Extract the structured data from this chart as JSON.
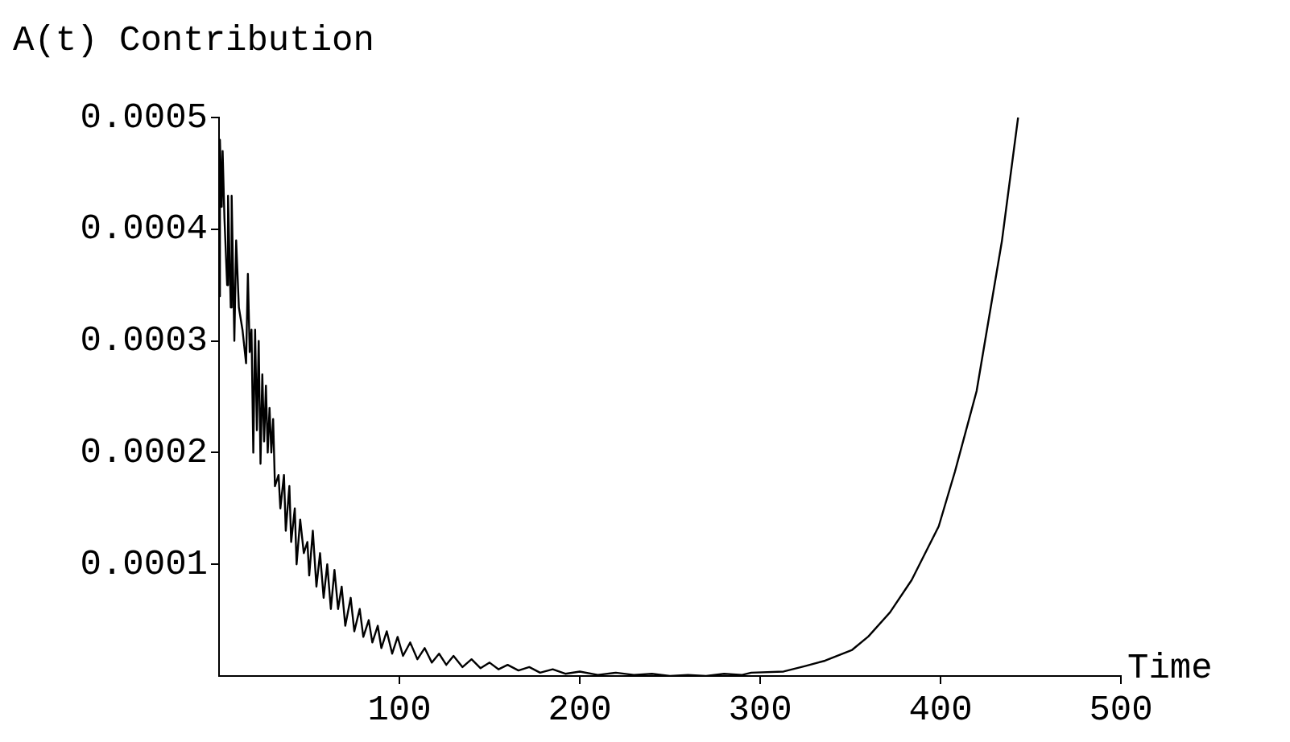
{
  "chart_data": {
    "type": "line",
    "ylabel": "A(t) Contribution",
    "xlabel": "Time",
    "xlim": [
      0,
      500
    ],
    "xticks": [
      100,
      200,
      300,
      400,
      500
    ],
    "ylim": [
      0,
      0.0005
    ],
    "yticks": [
      0.0001,
      0.0002,
      0.0003,
      0.0004,
      0.0005
    ],
    "grid": false,
    "legend": false,
    "marker": "none",
    "line_style": "solid",
    "series": [
      {
        "color": "#000000",
        "x": [
          0,
          0.5,
          1.5,
          2,
          3,
          4.5,
          5,
          6.5,
          7,
          8.5,
          9.5,
          11,
          13,
          15,
          16,
          17,
          18,
          19,
          20,
          21,
          22,
          23,
          24,
          25,
          26,
          27,
          28,
          29,
          30,
          31,
          33,
          34,
          36,
          37,
          39,
          40,
          42,
          43,
          45,
          47,
          49,
          50,
          52,
          54,
          56,
          58,
          60,
          62,
          64,
          66,
          68,
          70,
          73,
          75,
          78,
          80,
          83,
          85,
          88,
          90,
          93,
          96,
          99,
          102,
          106,
          110,
          114,
          118,
          122,
          126,
          130,
          135,
          140,
          145,
          150,
          155,
          160,
          166,
          172,
          178,
          185,
          192,
          200,
          210,
          220,
          230,
          240,
          250,
          260,
          270,
          280,
          290,
          295,
          313,
          325,
          336,
          351,
          360,
          372,
          384,
          399,
          408,
          420,
          434,
          443
        ],
        "values": [
          0.00034,
          0.00048,
          0.00042,
          0.00047,
          0.00041,
          0.00035,
          0.00043,
          0.00033,
          0.00043,
          0.0003,
          0.00039,
          0.00033,
          0.00031,
          0.00028,
          0.00036,
          0.00029,
          0.00031,
          0.0002,
          0.00031,
          0.00022,
          0.0003,
          0.00019,
          0.00027,
          0.00021,
          0.00026,
          0.0002,
          0.00024,
          0.0002,
          0.00023,
          0.00017,
          0.00018,
          0.00015,
          0.00018,
          0.00013,
          0.00017,
          0.00012,
          0.00015,
          0.0001,
          0.00014,
          0.00011,
          0.00012,
          9e-05,
          0.00013,
          8e-05,
          0.00011,
          7e-05,
          0.0001,
          6e-05,
          9.5e-05,
          6e-05,
          8e-05,
          4.5e-05,
          7e-05,
          4e-05,
          6e-05,
          3.5e-05,
          5e-05,
          3e-05,
          4.5e-05,
          2.5e-05,
          4e-05,
          2e-05,
          3.5e-05,
          1.8e-05,
          3e-05,
          1.5e-05,
          2.5e-05,
          1.2e-05,
          2e-05,
          1e-05,
          1.8e-05,
          8e-06,
          1.5e-05,
          7e-06,
          1.2e-05,
          6e-06,
          1e-05,
          5e-06,
          8e-06,
          3e-06,
          6e-06,
          2e-06,
          4e-06,
          1e-06,
          3e-06,
          1e-06,
          2e-06,
          0,
          1e-06,
          0,
          2e-06,
          1e-06,
          3e-06,
          4e-06,
          8.9e-06,
          1.37e-05,
          2.34e-05,
          3.54e-05,
          5.7e-05,
          8.59e-05,
          0.000134,
          0.000183,
          0.000255,
          0.000389,
          0.0005
        ]
      }
    ]
  }
}
